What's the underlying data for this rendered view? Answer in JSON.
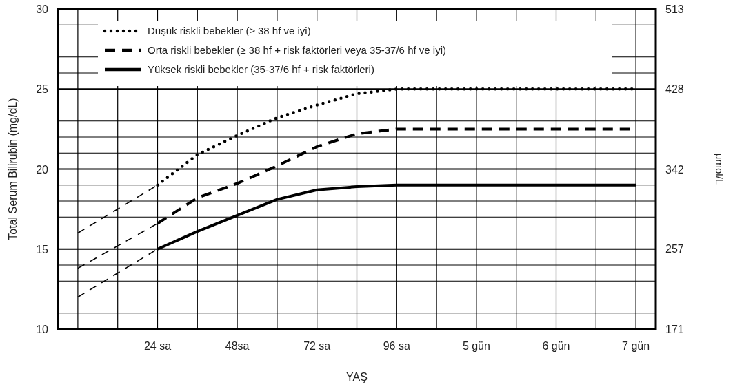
{
  "chart_data": {
    "type": "line",
    "xlabel": "YAŞ",
    "ylabel": "Total Serum Bilirubin (mg/dL)",
    "y2label": "μmol/L",
    "categories": [
      null,
      null,
      "24 sa",
      null,
      "48sa",
      null,
      "72 sa",
      null,
      "96 sa",
      null,
      "5 gün",
      null,
      "6 gün",
      null,
      "7 gün"
    ],
    "ylim": [
      10,
      30
    ],
    "y2lim": [
      171,
      513
    ],
    "yticks": [
      10,
      {
        "value": 11,
        "label": null
      },
      {
        "value": 12,
        "label": null
      },
      {
        "value": 13,
        "label": null
      },
      {
        "value": 14,
        "label": null
      },
      15,
      {
        "value": 16,
        "label": null
      },
      {
        "value": 17,
        "label": null
      },
      {
        "value": 18,
        "label": null
      },
      {
        "value": 19,
        "label": null
      },
      20,
      {
        "value": 21,
        "label": null
      },
      {
        "value": 22,
        "label": null
      },
      {
        "value": 23,
        "label": null
      },
      {
        "value": 24,
        "label": null
      },
      25,
      {
        "value": 26,
        "label": null
      },
      {
        "value": 27,
        "label": null
      },
      {
        "value": 28,
        "label": null
      },
      {
        "value": 29,
        "label": null
      },
      30
    ],
    "y2ticks": [
      171,
      257,
      342,
      428,
      513
    ],
    "grid": true,
    "legend": "top left",
    "series": [
      {
        "name": "Düşük riskli bebekler (≥ 38 hf ve iyi)",
        "color": "#000000",
        "line_style": "dotted",
        "values": [
          null,
          null,
          19,
          20.9,
          22.1,
          23.2,
          24,
          24.7,
          25,
          25,
          25,
          25,
          25,
          25,
          25
        ]
      },
      {
        "name": "Orta riskli bebekler (≥ 38 hf + risk faktörleri veya 35-37/6 hf ve iyi)",
        "color": "#000000",
        "line_style": "dashed",
        "values": [
          null,
          null,
          16.6,
          18.2,
          19.1,
          20.2,
          21.4,
          22.2,
          22.5,
          22.5,
          22.5,
          22.5,
          22.5,
          22.5,
          22.5
        ]
      },
      {
        "name": "Yüksek riskli bebekler (35-37/6 hf + risk faktörleri)",
        "color": "#000000",
        "line_style": "solid",
        "values": [
          null,
          null,
          15,
          16.1,
          17.1,
          18.1,
          18.7,
          18.9,
          19,
          19,
          19,
          19,
          19,
          19,
          19
        ]
      },
      {
        "color": "#000000",
        "line_style": "dashed",
        "values": [
          16,
          17.5,
          19,
          null,
          null,
          null,
          null,
          null,
          null,
          null,
          null,
          null,
          null,
          null,
          null
        ]
      },
      {
        "color": "#000000",
        "line_style": "dashed",
        "values": [
          13.8,
          15.2,
          16.6,
          null,
          null,
          null,
          null,
          null,
          null,
          null,
          null,
          null,
          null,
          null,
          null
        ]
      },
      {
        "color": "#000000",
        "line_style": "dashed",
        "values": [
          12,
          13.5,
          15,
          null,
          null,
          null,
          null,
          null,
          null,
          null,
          null,
          null,
          null,
          null,
          null
        ]
      }
    ]
  }
}
